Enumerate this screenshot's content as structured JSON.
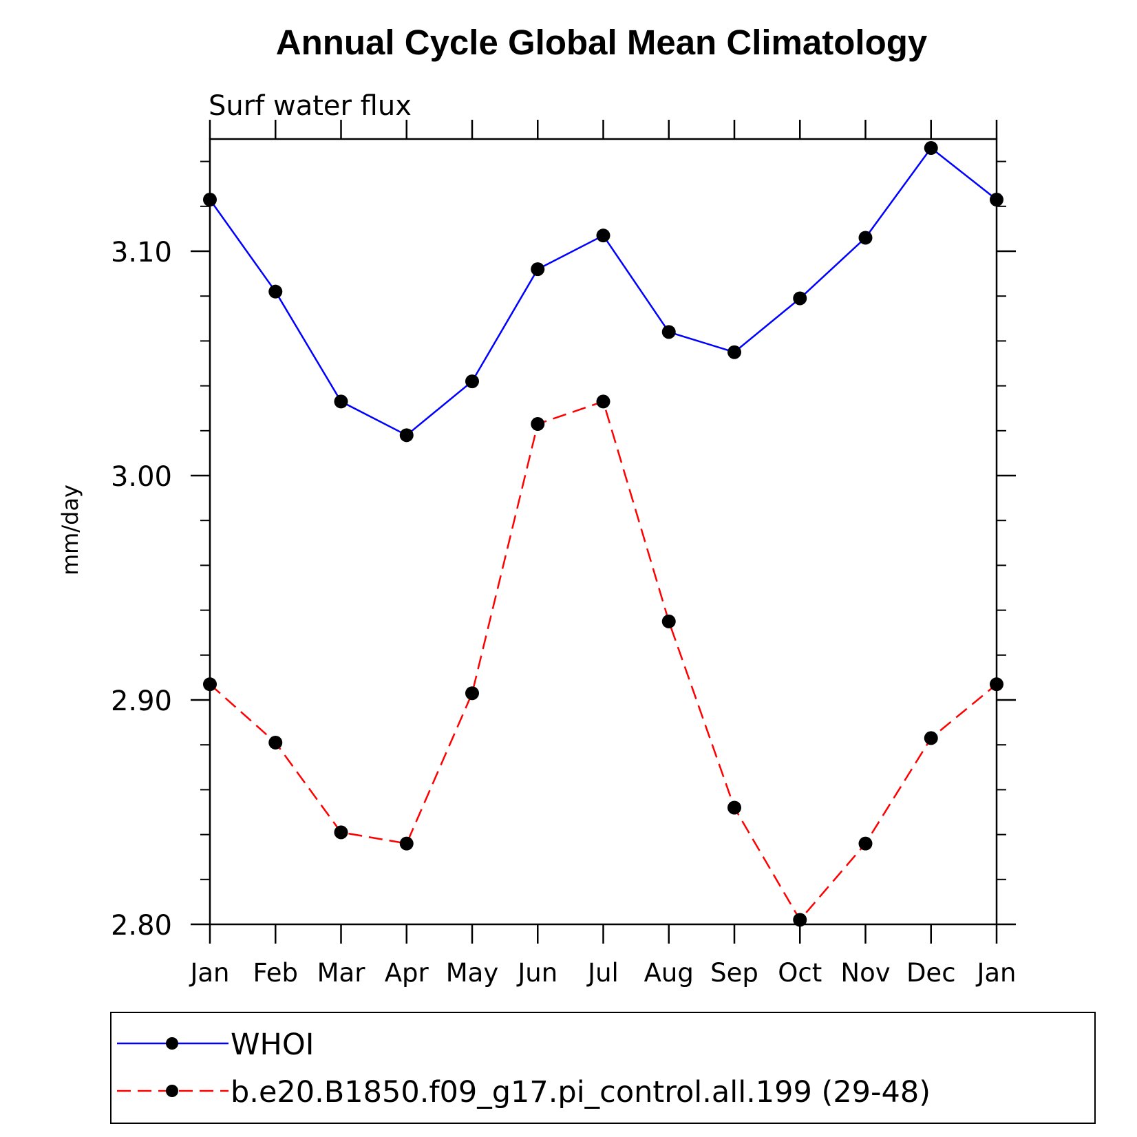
{
  "chart_data": {
    "type": "line",
    "title": "Annual Cycle Global Mean Climatology",
    "subtitle": "Surf water flux",
    "ylabel": "mm/day",
    "xlabel": "",
    "categories": [
      "Jan",
      "Feb",
      "Mar",
      "Apr",
      "May",
      "Jun",
      "Jul",
      "Aug",
      "Sep",
      "Oct",
      "Nov",
      "Dec",
      "Jan"
    ],
    "ylim": [
      2.8,
      3.15
    ],
    "yticks": [
      "2.80",
      "2.90",
      "3.00",
      "3.10"
    ],
    "grid": false,
    "legend_position": "bottom",
    "series": [
      {
        "name": "WHOI",
        "color": "#0000ff",
        "line_style": "solid",
        "marker": "filled-circle",
        "values": [
          3.123,
          3.082,
          3.033,
          3.018,
          3.042,
          3.092,
          3.107,
          3.064,
          3.055,
          3.079,
          3.106,
          3.146,
          3.123
        ]
      },
      {
        "name": "b.e20.B1850.f09_g17.pi_control.all.199 (29-48)",
        "color": "#ff0000",
        "line_style": "dashed",
        "marker": "filled-circle",
        "values": [
          2.907,
          2.881,
          2.841,
          2.836,
          2.903,
          3.023,
          3.033,
          2.935,
          2.852,
          2.802,
          2.836,
          2.883,
          2.907
        ]
      }
    ]
  }
}
